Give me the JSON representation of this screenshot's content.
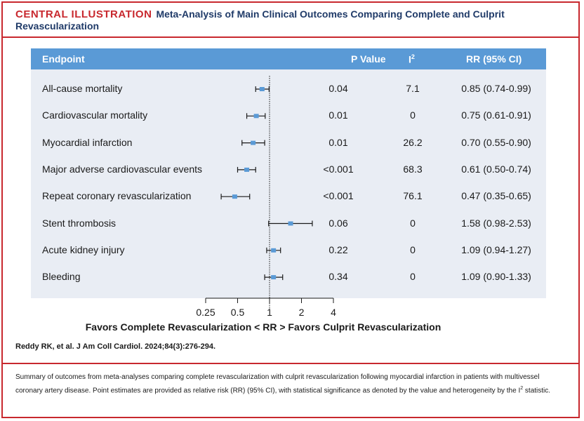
{
  "header": {
    "tag": "CENTRAL ILLUSTRATION",
    "title": "Meta-Analysis of Main Clinical Outcomes Comparing Complete and Culprit Revascularization"
  },
  "table": {
    "col_endpoint": "Endpoint",
    "col_p": "P Value",
    "col_i2": "I",
    "col_i2_sup": "2",
    "col_rr": "RR (95% CI)"
  },
  "chart_data": {
    "type": "forest",
    "x_scale": "log",
    "x_ticks": [
      0.25,
      0.5,
      1,
      2,
      4
    ],
    "x_tick_labels": [
      "0.25",
      "0.5",
      "1",
      "2",
      "4"
    ],
    "reference_line": 1,
    "xlabel": "Favors Complete Revascularization < RR > Favors Culprit Revascularization",
    "rows": [
      {
        "endpoint": "All-cause mortality",
        "p": "0.04",
        "i2": "7.1",
        "rr_text": "0.85 (0.74-0.99)",
        "rr": 0.85,
        "lo": 0.74,
        "hi": 0.99
      },
      {
        "endpoint": "Cardiovascular mortality",
        "p": "0.01",
        "i2": "0",
        "rr_text": "0.75 (0.61-0.91)",
        "rr": 0.75,
        "lo": 0.61,
        "hi": 0.91
      },
      {
        "endpoint": "Myocardial infarction",
        "p": "0.01",
        "i2": "26.2",
        "rr_text": "0.70 (0.55-0.90)",
        "rr": 0.7,
        "lo": 0.55,
        "hi": 0.9
      },
      {
        "endpoint": "Major adverse cardiovascular events",
        "p": "<0.001",
        "i2": "68.3",
        "rr_text": "0.61 (0.50-0.74)",
        "rr": 0.61,
        "lo": 0.5,
        "hi": 0.74
      },
      {
        "endpoint": "Repeat coronary revascularization",
        "p": "<0.001",
        "i2": "76.1",
        "rr_text": "0.47 (0.35-0.65)",
        "rr": 0.47,
        "lo": 0.35,
        "hi": 0.65
      },
      {
        "endpoint": "Stent thrombosis",
        "p": "0.06",
        "i2": "0",
        "rr_text": "1.58 (0.98-2.53)",
        "rr": 1.58,
        "lo": 0.98,
        "hi": 2.53
      },
      {
        "endpoint": "Acute kidney injury",
        "p": "0.22",
        "i2": "0",
        "rr_text": "1.09 (0.94-1.27)",
        "rr": 1.09,
        "lo": 0.94,
        "hi": 1.27
      },
      {
        "endpoint": "Bleeding",
        "p": "0.34",
        "i2": "0",
        "rr_text": "1.09 (0.90-1.33)",
        "rr": 1.09,
        "lo": 0.9,
        "hi": 1.33
      }
    ],
    "colors": {
      "point": "#5a9ad6",
      "ci": "#1a1a1a",
      "header_bg": "#5a9ad6",
      "panel_bg": "#e9edf4"
    }
  },
  "citation": "Reddy RK, et al. J Am Coll Cardiol. 2024;84(3):276-294.",
  "summary": {
    "text": "Summary of outcomes from meta-analyses comparing complete revascularization with culprit revascularization following myocardial infarction in patients with multivessel coronary artery disease. Point estimates are provided as relative risk (RR) (95% CI), with statistical significance as denoted by the value and heterogeneity by the I",
    "sup": "2",
    "tail": " statistic."
  }
}
